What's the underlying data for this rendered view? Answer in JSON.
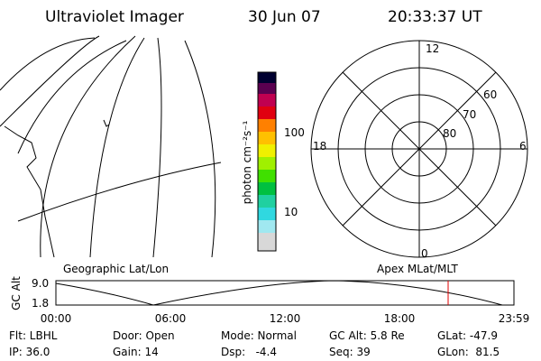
{
  "header": {
    "title": "Ultraviolet Imager",
    "date": "30 Jun 07",
    "time": "20:33:37 UT"
  },
  "colorbar": {
    "label": "photon cm⁻²s⁻¹",
    "ticks": [
      "100",
      "10"
    ]
  },
  "polar": {
    "mlt_labels": [
      "12",
      "0",
      "18",
      "6"
    ],
    "lat_labels": [
      "60",
      "70",
      "80"
    ]
  },
  "panels": {
    "left_label": "Geographic Lat/Lon",
    "right_label": "Apex MLat/MLT"
  },
  "altitude": {
    "axis_label": "GC Alt",
    "ticks": [
      "9.0",
      "1.8"
    ],
    "times": [
      "00:00",
      "06:00",
      "12:00",
      "18:00",
      "23:59"
    ]
  },
  "info": {
    "rows": [
      [
        "Flt: LBHL",
        "Door: Open",
        "Mode: Normal",
        "GC Alt: 5.8 Re",
        "GLat: -47.9"
      ],
      [
        "IP: 36.0",
        "Gain: 14",
        "Dsp:   -4.4",
        "Seq: 39",
        "GLon:  81.5"
      ]
    ]
  }
}
